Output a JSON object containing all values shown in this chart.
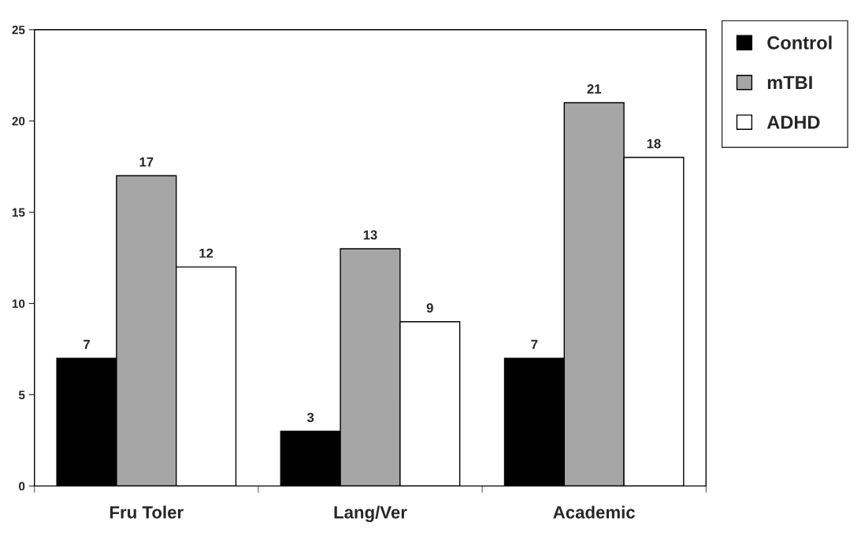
{
  "chart_data": {
    "type": "bar",
    "categories": [
      "Fru Toler",
      "Lang/Ver",
      "Academic"
    ],
    "series": [
      {
        "name": "Control",
        "color": "#000000",
        "values": [
          7,
          3,
          7
        ]
      },
      {
        "name": "mTBI",
        "color": "#a6a6a6",
        "values": [
          17,
          13,
          21
        ]
      },
      {
        "name": "ADHD",
        "color": "#ffffff",
        "values": [
          12,
          9,
          18
        ]
      }
    ],
    "ylim": [
      0,
      25
    ],
    "yticks": [
      0,
      5,
      10,
      15,
      20,
      25
    ],
    "data_labels": true,
    "legend": "top right",
    "grid": false
  }
}
